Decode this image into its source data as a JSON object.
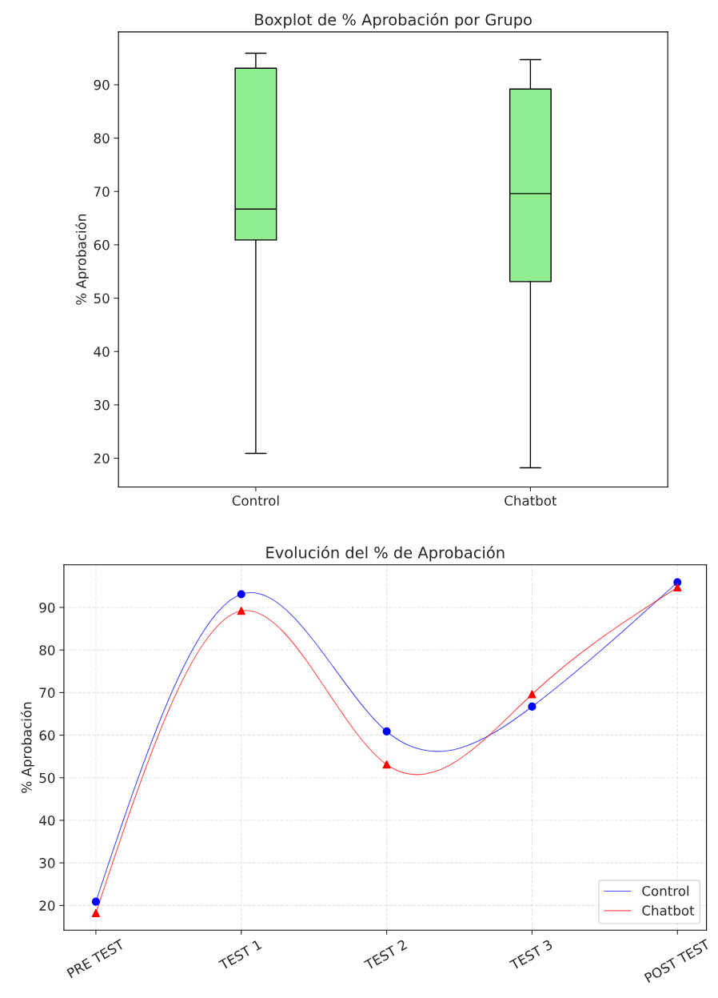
{
  "chart_data": [
    {
      "type": "box",
      "title": "Boxplot de % Aprobación por Grupo",
      "ylabel": "% Aprobación",
      "categories": [
        "Control",
        "Chatbot"
      ],
      "boxes": [
        {
          "low": 20.9,
          "q1": 60.9,
          "median": 66.7,
          "q3": 93.1,
          "high": 95.9
        },
        {
          "low": 18.2,
          "q1": 53.1,
          "median": 69.6,
          "q3": 89.2,
          "high": 94.7
        }
      ],
      "color": "#90ee90",
      "ylim": [
        14.6,
        99.9
      ],
      "yticks": [
        20,
        30,
        40,
        50,
        60,
        70,
        80,
        90
      ],
      "grid": false
    },
    {
      "type": "line",
      "title": "Evolución del % de Aprobación",
      "ylabel": "% Aprobación",
      "categories": [
        "PRE TEST",
        "TEST 1",
        "TEST 2",
        "TEST 3",
        "POST TEST"
      ],
      "series": [
        {
          "name": "Control",
          "color": "#0000ff",
          "marker": "circle",
          "values": [
            20.9,
            93.1,
            60.9,
            66.7,
            95.9
          ]
        },
        {
          "name": "Chatbot",
          "color": "#ff0000",
          "marker": "triangle",
          "values": [
            18.2,
            89.2,
            53.1,
            69.6,
            94.7
          ]
        }
      ],
      "ylim": [
        14.2,
        100
      ],
      "yticks": [
        20,
        30,
        40,
        50,
        60,
        70,
        80,
        90
      ],
      "grid": true,
      "line_style": "solid",
      "legend": "bottom right"
    }
  ]
}
